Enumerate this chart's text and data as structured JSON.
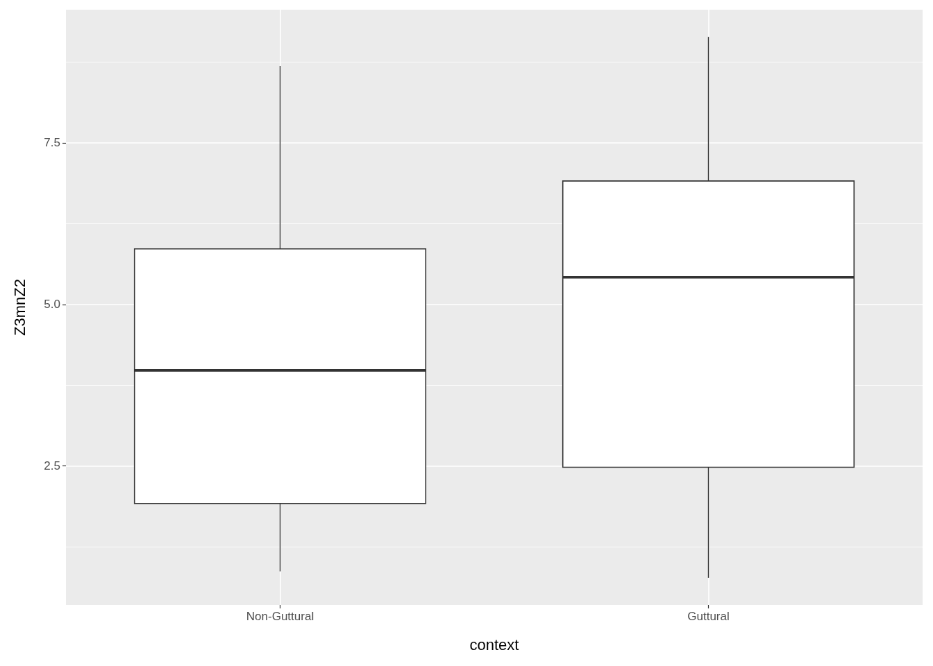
{
  "chart_data": {
    "type": "box",
    "xlabel": "context",
    "ylabel": "Z3mnZ2",
    "categories": [
      "Non-Guttural",
      "Guttural"
    ],
    "boxes": [
      {
        "low": 0.87,
        "q1": 1.92,
        "median": 3.98,
        "q3": 5.86,
        "high": 8.69
      },
      {
        "low": 0.77,
        "q1": 2.48,
        "median": 5.42,
        "q3": 6.91,
        "high": 9.14
      }
    ],
    "color": "#333333",
    "ylim": [
      0.35,
      9.56
    ],
    "yticks": [
      {
        "value": 1.25,
        "label": null
      },
      {
        "value": 2.5,
        "label": "2.5"
      },
      {
        "value": 3.75,
        "label": null
      },
      {
        "value": 5,
        "label": "5.0"
      },
      {
        "value": 6.25,
        "label": null
      },
      {
        "value": 7.5,
        "label": "7.5"
      },
      {
        "value": 8.75,
        "label": null
      }
    ],
    "grid": true
  }
}
